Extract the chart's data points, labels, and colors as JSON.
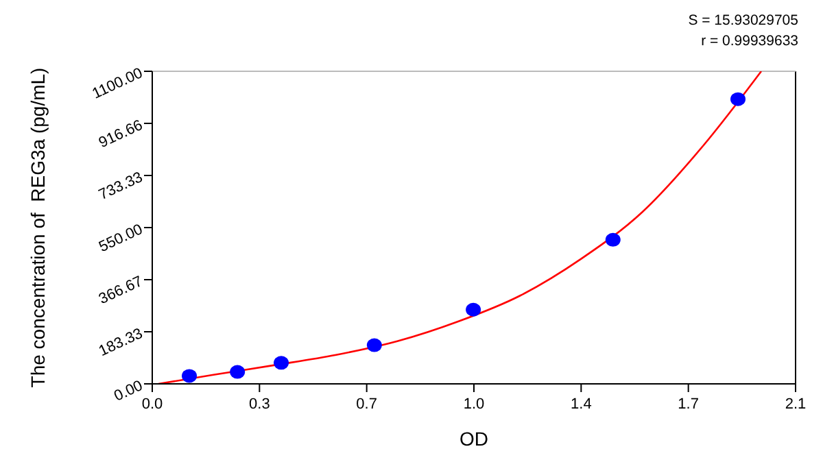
{
  "chart_data": {
    "type": "scatter",
    "xlabel": "OD",
    "ylabel": "The concentration of  REG3a (pg/mL)",
    "annotations": [
      "S = 15.93029705",
      "r = 0.99939633"
    ],
    "xlim": [
      0,
      2.1
    ],
    "xticks": [
      {
        "value": 0,
        "label": "0.0"
      },
      {
        "value": 0.35,
        "label": "0.3"
      },
      0.7,
      {
        "value": 1.05,
        "label": "1.0"
      },
      1.4,
      {
        "value": 1.75,
        "label": "1.7"
      },
      2.1
    ],
    "ylim": [
      0,
      1100
    ],
    "yticks": [
      {
        "value": 0,
        "label": "0.00"
      },
      {
        "value": 183.33,
        "label": "183.33"
      },
      {
        "value": 366.67,
        "label": "366.67"
      },
      {
        "value": 550,
        "label": "550.00"
      },
      {
        "value": 733.33,
        "label": "733.33"
      },
      {
        "value": 916.66,
        "label": "916.66"
      },
      {
        "value": 1100,
        "label": "1100.00"
      }
    ],
    "grid": false,
    "legend": false,
    "marker": "circle",
    "series": [
      {
        "type": "scatter",
        "color": "#0000ff",
        "x": [
          0.121,
          0.278,
          0.421,
          0.725,
          1.048,
          1.504,
          1.912
        ],
        "values": [
          28,
          42,
          74,
          136,
          261,
          507,
          1002
        ]
      },
      {
        "type": "line",
        "color": "#ff0000",
        "line_style": "solid",
        "marker": "none",
        "x": [
          0.02,
          0.2,
          0.4,
          0.6,
          0.8,
          1.0,
          1.2,
          1.4,
          1.6,
          1.8,
          1.988
        ],
        "values": [
          0,
          32,
          66,
          102,
          150,
          220,
          310,
          440,
          605,
          840,
          1100
        ]
      }
    ]
  }
}
